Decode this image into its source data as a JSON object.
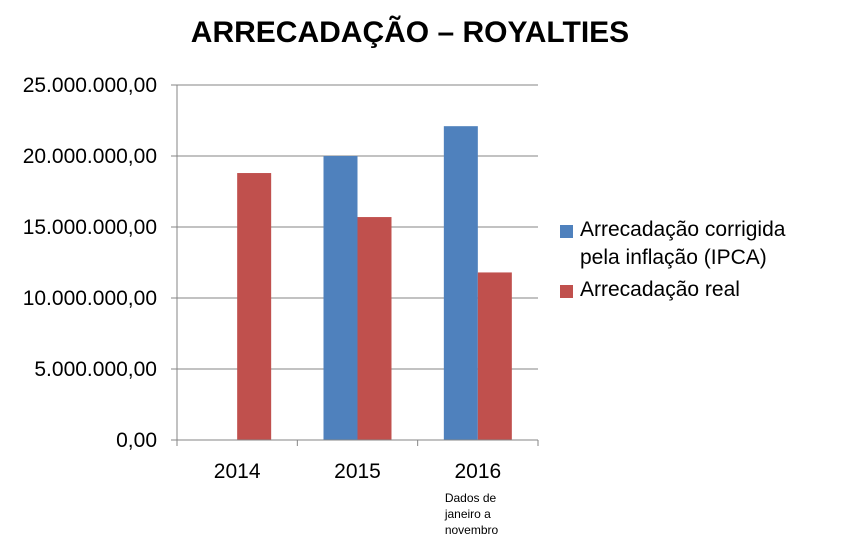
{
  "chart_data": {
    "type": "bar",
    "title": "ARRECADAÇÃO – ROYALTIES",
    "categories": [
      "2014",
      "2015",
      "2016"
    ],
    "category_notes": [
      "",
      "",
      "Dados de janeiro a novembro"
    ],
    "category_note_lines": [
      [],
      [],
      [
        "Dados de",
        "janeiro a",
        "novembro"
      ]
    ],
    "series": [
      {
        "name_lines": [
          "Arrecadação corrigida",
          "pela inflação (IPCA)"
        ],
        "color": "#4F81BD",
        "values": [
          null,
          20000000,
          22100000
        ]
      },
      {
        "name_lines": [
          "Arrecadação real"
        ],
        "color": "#C0504D",
        "values": [
          18800000,
          15700000,
          11800000
        ]
      }
    ],
    "ylim": [
      0,
      25000000
    ],
    "yticks": [
      0,
      5000000,
      10000000,
      15000000,
      20000000,
      25000000
    ],
    "ytick_labels": [
      "0,00",
      "5.000.000,00",
      "10.000.000,00",
      "15.000.000,00",
      "20.000.000,00",
      "25.000.000,00"
    ],
    "grid": true,
    "legend_position": "right"
  }
}
